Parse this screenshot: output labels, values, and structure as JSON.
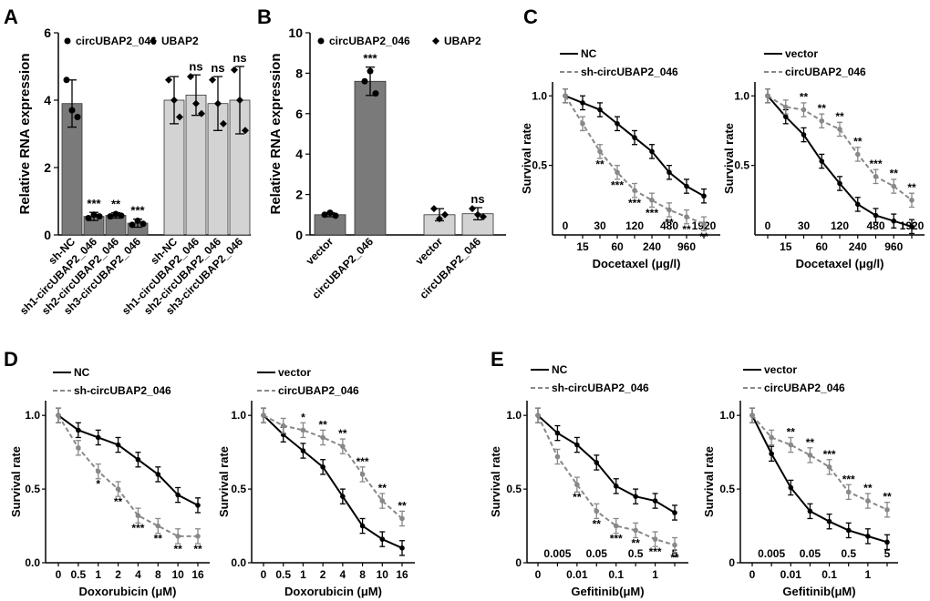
{
  "panels": {
    "A": {
      "label": "A",
      "chart": {
        "type": "bar",
        "ylabel": "Relative RNA expression",
        "ylim": [
          0,
          6
        ],
        "yticks": [
          0,
          2,
          4,
          6
        ],
        "legend": [
          {
            "name": "circUBAP2_046",
            "marker": "circle"
          },
          {
            "name": "UBAP2",
            "marker": "diamond"
          }
        ],
        "groups": [
          {
            "series": "circUBAP2_046",
            "color": "#7a7a7a",
            "bars": [
              {
                "label": "sh-NC",
                "value": 3.9,
                "err": 0.7,
                "sig": "",
                "pts": [
                  4.6,
                  3.7,
                  3.5
                ]
              },
              {
                "label": "sh1-circUBAP2_046",
                "value": 0.55,
                "err": 0.12,
                "sig": "***",
                "pts": [
                  0.5,
                  0.6,
                  0.55
                ]
              },
              {
                "label": "sh2-circUBAP2_046",
                "value": 0.58,
                "err": 0.08,
                "sig": "**",
                "pts": [
                  0.55,
                  0.62,
                  0.57
                ]
              },
              {
                "label": "sh3-circUBAP2_046",
                "value": 0.35,
                "err": 0.12,
                "sig": "***",
                "pts": [
                  0.3,
                  0.42,
                  0.33
                ]
              }
            ]
          },
          {
            "series": "UBAP2",
            "color": "#d3d3d3",
            "bars": [
              {
                "label": "sh-NC",
                "value": 4.0,
                "err": 0.7,
                "sig": "",
                "pts": [
                  4.6,
                  4.0,
                  3.5
                ]
              },
              {
                "label": "sh1-circUBAP2_046",
                "value": 4.15,
                "err": 0.6,
                "sig": "ns",
                "pts": [
                  4.7,
                  3.9,
                  3.6
                ]
              },
              {
                "label": "sh2-circUBAP2_046",
                "value": 3.9,
                "err": 0.8,
                "sig": "ns",
                "pts": [
                  4.6,
                  3.9,
                  3.3
                ]
              },
              {
                "label": "sh3-circUBAP2_046",
                "value": 4.0,
                "err": 1.0,
                "sig": "ns",
                "pts": [
                  4.9,
                  4.0,
                  3.1
                ]
              }
            ]
          }
        ]
      }
    },
    "B": {
      "label": "B",
      "chart": {
        "type": "bar",
        "ylabel": "Relative RNA expression",
        "ylim": [
          0,
          10
        ],
        "yticks": [
          0,
          2,
          4,
          6,
          8,
          10
        ],
        "legend": [
          {
            "name": "circUBAP2_046",
            "marker": "circle"
          },
          {
            "name": "UBAP2",
            "marker": "diamond"
          }
        ],
        "groups": [
          {
            "series": "circUBAP2_046",
            "color": "#7a7a7a",
            "bars": [
              {
                "label": "vector",
                "value": 1.0,
                "err": 0.1,
                "sig": "",
                "pts": [
                  1.0,
                  1.1,
                  0.95
                ]
              },
              {
                "label": "circUBAP2_046",
                "value": 7.6,
                "err": 0.7,
                "sig": "***",
                "pts": [
                  7.6,
                  8.1,
                  7.0
                ]
              }
            ]
          },
          {
            "series": "UBAP2",
            "color": "#d3d3d3",
            "bars": [
              {
                "label": "vector",
                "value": 1.0,
                "err": 0.3,
                "sig": "",
                "pts": [
                  1.3,
                  0.8,
                  1.0
                ]
              },
              {
                "label": "circUBAP2_046",
                "value": 1.05,
                "err": 0.3,
                "sig": "ns",
                "pts": [
                  1.3,
                  1.0,
                  0.9
                ]
              }
            ]
          }
        ]
      }
    },
    "C": {
      "label": "C",
      "charts": [
        {
          "type": "line",
          "xlabel": "Docetaxel (μg/l)",
          "ylabel": "Survival rate",
          "ylim": [
            0,
            1.1
          ],
          "yticks": [
            "0.5",
            "1.0"
          ],
          "xticks_low": [
            "0",
            "30",
            "120",
            "480",
            "1920"
          ],
          "xticks_high": [
            "15",
            "60",
            "240",
            "960"
          ],
          "series": [
            {
              "name": "NC",
              "style": "solid",
              "color": "#000000",
              "values": [
                1.0,
                0.95,
                0.9,
                0.8,
                0.7,
                0.6,
                0.45,
                0.35,
                0.28
              ]
            },
            {
              "name": "sh-circUBAP2_046",
              "style": "dashed",
              "color": "#888888",
              "values": [
                1.0,
                0.8,
                0.6,
                0.45,
                0.32,
                0.25,
                0.18,
                0.13,
                0.08
              ]
            }
          ],
          "annotations": [
            "",
            "",
            "**",
            "***",
            "***",
            "***",
            "**",
            "**",
            "**"
          ]
        },
        {
          "type": "line",
          "xlabel": "Docetaxel (μg/l)",
          "ylabel": "Survival rate",
          "ylim": [
            0,
            1.1
          ],
          "yticks": [
            "0.5",
            "1.0"
          ],
          "xticks_low": [
            "0",
            "30",
            "120",
            "480",
            "1920"
          ],
          "xticks_high": [
            "15",
            "60",
            "240",
            "960"
          ],
          "series": [
            {
              "name": "vector",
              "style": "solid",
              "color": "#000000",
              "values": [
                1.0,
                0.85,
                0.72,
                0.53,
                0.37,
                0.22,
                0.14,
                0.1,
                0.06
              ]
            },
            {
              "name": "circUBAP2_046",
              "style": "dashed",
              "color": "#888888",
              "values": [
                1.0,
                0.92,
                0.9,
                0.82,
                0.76,
                0.58,
                0.42,
                0.35,
                0.25
              ]
            }
          ],
          "annotations": [
            "",
            "",
            "**",
            "**",
            "**",
            "**",
            "***",
            "**",
            "**"
          ]
        }
      ]
    },
    "D": {
      "label": "D",
      "charts": [
        {
          "type": "line",
          "xlabel": "Doxorubicin (μM)",
          "ylabel": "Survival rate",
          "ylim": [
            0,
            1.1
          ],
          "yticks": [
            "0.0",
            "0.5",
            "1.0"
          ],
          "xticks": [
            "0",
            "0.5",
            "1",
            "2",
            "4",
            "8",
            "10",
            "16"
          ],
          "series": [
            {
              "name": "NC",
              "style": "solid",
              "color": "#000000",
              "values": [
                1.0,
                0.9,
                0.85,
                0.8,
                0.7,
                0.6,
                0.46,
                0.39
              ]
            },
            {
              "name": "sh-circUBAP2_046",
              "style": "dashed",
              "color": "#888888",
              "values": [
                1.0,
                0.78,
                0.62,
                0.5,
                0.32,
                0.25,
                0.18,
                0.18
              ]
            }
          ],
          "annotations": [
            "",
            "",
            "*",
            "**",
            "***",
            "**",
            "**",
            "**"
          ]
        },
        {
          "type": "line",
          "xlabel": "Doxorubicin (μM)",
          "ylabel": "Survival rate",
          "ylim": [
            0,
            1.1
          ],
          "yticks": [
            "0.0",
            "0.5",
            "1.0"
          ],
          "xticks": [
            "0",
            "0.5",
            "1",
            "2",
            "4",
            "8",
            "10",
            "16"
          ],
          "series": [
            {
              "name": "vector",
              "style": "solid",
              "color": "#000000",
              "values": [
                1.0,
                0.87,
                0.76,
                0.65,
                0.45,
                0.25,
                0.16,
                0.1
              ]
            },
            {
              "name": "circUBAP2_046",
              "style": "dashed",
              "color": "#888888",
              "values": [
                1.0,
                0.93,
                0.9,
                0.85,
                0.79,
                0.6,
                0.42,
                0.3
              ]
            }
          ],
          "annotations": [
            "",
            "",
            "*",
            "**",
            "**",
            "***",
            "**",
            "**"
          ]
        }
      ]
    },
    "E": {
      "label": "E",
      "charts": [
        {
          "type": "line",
          "xlabel": "Gefitinib(μM)",
          "ylabel": "Survival rate",
          "ylim": [
            0,
            1.1
          ],
          "yticks": [
            "0",
            "0.5",
            "1.0"
          ],
          "xticks_low": [
            "0.005",
            "0.05",
            "0.5",
            "5"
          ],
          "xticks_high": [
            "0",
            "0.01",
            "0.1",
            "1"
          ],
          "series": [
            {
              "name": "NC",
              "style": "solid",
              "color": "#000000",
              "values": [
                1.0,
                0.88,
                0.8,
                0.68,
                0.52,
                0.45,
                0.42,
                0.34
              ]
            },
            {
              "name": "sh-circUBAP2_046",
              "style": "dashed",
              "color": "#888888",
              "values": [
                1.0,
                0.72,
                0.53,
                0.35,
                0.25,
                0.22,
                0.16,
                0.12
              ]
            }
          ],
          "annotations": [
            "",
            "",
            "**",
            "**",
            "***",
            "**",
            "***",
            "**"
          ]
        },
        {
          "type": "line",
          "xlabel": "Gefitinib(μM)",
          "ylabel": "Survival rate",
          "ylim": [
            0,
            1.1
          ],
          "yticks": [
            "0",
            "0.5",
            "1.0"
          ],
          "xticks_low": [
            "0.005",
            "0.05",
            "0.5",
            "5"
          ],
          "xticks_high": [
            "0",
            "0.01",
            "0.1",
            "1"
          ],
          "series": [
            {
              "name": "vector",
              "style": "solid",
              "color": "#000000",
              "values": [
                1.0,
                0.74,
                0.51,
                0.35,
                0.28,
                0.22,
                0.18,
                0.14
              ]
            },
            {
              "name": "circUBAP2_046",
              "style": "dashed",
              "color": "#888888",
              "values": [
                1.0,
                0.85,
                0.8,
                0.73,
                0.65,
                0.48,
                0.42,
                0.36
              ]
            }
          ],
          "annotations": [
            "",
            "",
            "**",
            "**",
            "***",
            "***",
            "**",
            "**"
          ]
        }
      ]
    }
  }
}
